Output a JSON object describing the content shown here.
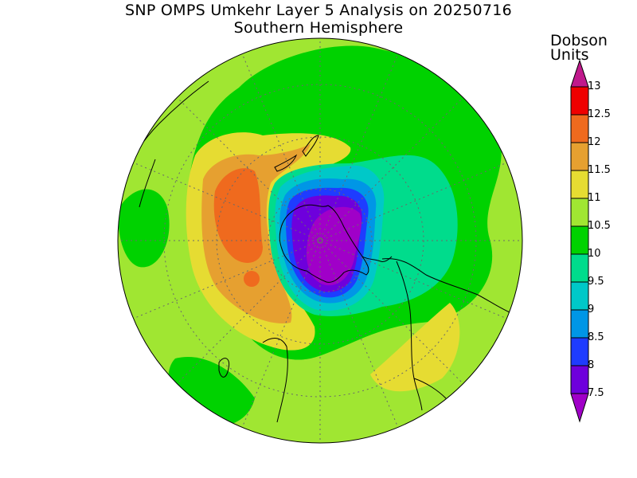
{
  "title": {
    "line1": "SNP OMPS Umkehr Layer 5 Analysis on 20250716",
    "line2": "Southern Hemisphere"
  },
  "legend": {
    "title_line1": "Dobson",
    "title_line2": "Units",
    "levels": [
      "13",
      "12.5",
      "12",
      "11.5",
      "11",
      "10.5",
      "10",
      "9.5",
      "9",
      "8.5",
      "8",
      "7.5"
    ],
    "colors": {
      "above_13": "#c0198c",
      "12.5-13": "#ef0000",
      "12-12.5": "#ef6a1e",
      "11.5-12": "#e6a030",
      "11-11.5": "#e6dc32",
      "10.5-11": "#a0e632",
      "10-10.5": "#00d200",
      "9.5-10": "#00dc8c",
      "9-9.5": "#00c8c8",
      "8.5-9": "#0096e6",
      "8-8.5": "#1e3cff",
      "7.5-8": "#6e00dc",
      "below_7.5": "#a000c8"
    }
  },
  "map": {
    "projection": "polar stereographic",
    "hemisphere": "south",
    "color_field": {
      "background_level": "10.5-11",
      "regions": [
        {
          "level": "10-10.5",
          "location": "central band around the pole"
        },
        {
          "level": "11-11.5",
          "location": "ring over the south Pacific sector (upper left)"
        },
        {
          "level": "11.5-12",
          "location": "inner ring over the south Pacific sector"
        },
        {
          "level": "12-12.5",
          "location": "maximum over the south Pacific sector"
        },
        {
          "level": "9.5-10",
          "location": "over Antarctica and toward the Atlantic sector"
        },
        {
          "level": "9-9.5",
          "location": "rim of the low over Antarctica"
        },
        {
          "level": "8.5-9",
          "location": "low over Antarctica"
        },
        {
          "level": "8-8.5",
          "location": "low over Antarctica"
        },
        {
          "level": "7.5-8",
          "location": "core of the low over Antarctica"
        },
        {
          "level": "below_7.5",
          "location": "innermost core over the Antarctic Peninsula"
        },
        {
          "level": "11-11.5",
          "location": "patch near South America (lower right)"
        }
      ]
    }
  }
}
